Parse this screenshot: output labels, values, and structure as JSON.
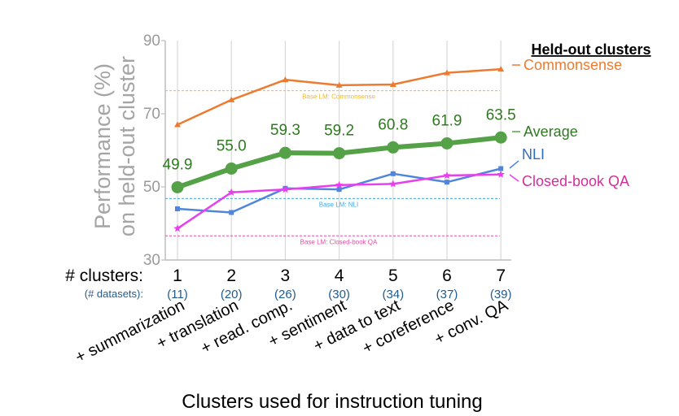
{
  "chart_data": {
    "type": "line",
    "ylabel_line1": "Performance (%)",
    "ylabel_line2": "on held-out cluster",
    "xlabel": "Clusters used for instruction tuning",
    "ylim": [
      30,
      90
    ],
    "yticks": [
      30,
      50,
      70,
      90
    ],
    "x": [
      1,
      2,
      3,
      4,
      5,
      6,
      7
    ],
    "clusters_label": "# clusters:",
    "datasets_label": "(# datasets):",
    "datasets": [
      "(11)",
      "(20)",
      "(26)",
      "(30)",
      "(34)",
      "(37)",
      "(39)"
    ],
    "categories": [
      "+ summarization",
      "+ translation",
      "+ read. comp.",
      "+ sentiment",
      "+ data to text",
      "+ coreference",
      "+ conv. QA"
    ],
    "legend_title": "Held-out clusters",
    "grid": "vertical",
    "series": [
      {
        "name": "Commonsense",
        "color": "#ed7b2f",
        "marker": "triangle",
        "values": [
          67.0,
          73.8,
          79.3,
          77.8,
          78.0,
          81.2,
          82.2
        ]
      },
      {
        "name": "Average",
        "color": "#55a147",
        "marker": "circle",
        "values": [
          49.9,
          55.0,
          59.3,
          59.2,
          60.8,
          61.9,
          63.5
        ],
        "labels": [
          "49.9",
          "55.0",
          "59.3",
          "59.2",
          "60.8",
          "61.9",
          "63.5"
        ]
      },
      {
        "name": "NLI",
        "color": "#4f86dc",
        "marker": "square",
        "values": [
          44.0,
          43.0,
          49.6,
          49.3,
          53.6,
          51.3,
          55.0
        ]
      },
      {
        "name": "Closed-book QA",
        "color": "#e83fee",
        "marker": "star",
        "values": [
          38.6,
          48.5,
          49.3,
          50.5,
          50.8,
          53.1,
          53.4
        ]
      }
    ],
    "baselines": [
      {
        "label": "Base LM: Commonsense",
        "value": 76.3,
        "color": "#f1b92b"
      },
      {
        "label": "Base LM: NLI",
        "value": 46.8,
        "color": "#41a8e8"
      },
      {
        "label": "Base LM: Closed-book QA",
        "value": 36.6,
        "color": "#e64aa6"
      }
    ]
  }
}
